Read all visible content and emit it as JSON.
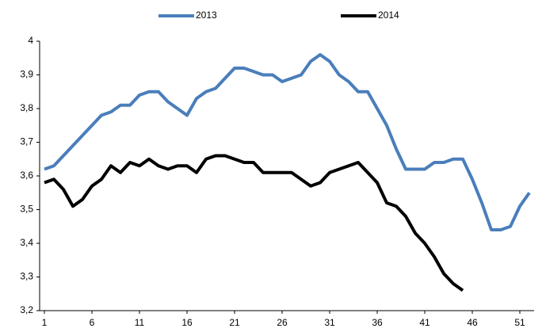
{
  "chart_data": {
    "type": "line",
    "x": [
      1,
      2,
      3,
      4,
      5,
      6,
      7,
      8,
      9,
      10,
      11,
      12,
      13,
      14,
      15,
      16,
      17,
      18,
      19,
      20,
      21,
      22,
      23,
      24,
      25,
      26,
      27,
      28,
      29,
      30,
      31,
      32,
      33,
      34,
      35,
      36,
      37,
      38,
      39,
      40,
      41,
      42,
      43,
      44,
      45,
      46,
      47,
      48,
      49,
      50,
      51,
      52
    ],
    "series": [
      {
        "name": "2013",
        "color": "#4a7ebb",
        "values": [
          3.62,
          3.63,
          3.66,
          3.69,
          3.72,
          3.75,
          3.78,
          3.79,
          3.81,
          3.81,
          3.84,
          3.85,
          3.85,
          3.82,
          3.8,
          3.78,
          3.83,
          3.85,
          3.86,
          3.89,
          3.92,
          3.92,
          3.91,
          3.9,
          3.9,
          3.88,
          3.89,
          3.9,
          3.94,
          3.96,
          3.94,
          3.9,
          3.88,
          3.85,
          3.85,
          3.8,
          3.75,
          3.68,
          3.62,
          3.62,
          3.62,
          3.64,
          3.64,
          3.65,
          3.65,
          3.59,
          3.52,
          3.44,
          3.44,
          3.45,
          3.51,
          3.55
        ]
      },
      {
        "name": "2014",
        "color": "#000000",
        "values": [
          3.58,
          3.59,
          3.56,
          3.51,
          3.53,
          3.57,
          3.59,
          3.63,
          3.61,
          3.64,
          3.63,
          3.65,
          3.63,
          3.62,
          3.63,
          3.63,
          3.61,
          3.65,
          3.66,
          3.66,
          3.65,
          3.64,
          3.64,
          3.61,
          3.61,
          3.61,
          3.61,
          3.59,
          3.57,
          3.58,
          3.61,
          3.62,
          3.63,
          3.64,
          3.61,
          3.58,
          3.52,
          3.51,
          3.48,
          3.43,
          3.4,
          3.36,
          3.31,
          3.28,
          3.26,
          null,
          null,
          null,
          null,
          null,
          null,
          null
        ]
      }
    ],
    "xlim": [
      0.5,
      52.5
    ],
    "xticks": [
      1,
      6,
      11,
      16,
      21,
      26,
      31,
      36,
      41,
      46,
      51
    ],
    "ylim": [
      3.2,
      4
    ],
    "yticks": [
      {
        "value": 3.2,
        "label": "3,2"
      },
      {
        "value": 3.3,
        "label": "3,3"
      },
      {
        "value": 3.4,
        "label": "3,4"
      },
      {
        "value": 3.5,
        "label": "3,5"
      },
      {
        "value": 3.6,
        "label": "3,6"
      },
      {
        "value": 3.7,
        "label": "3,7"
      },
      {
        "value": 3.8,
        "label": "3,8"
      },
      {
        "value": 3.9,
        "label": "3,9"
      },
      4
    ],
    "grid": false,
    "legend": "top"
  }
}
